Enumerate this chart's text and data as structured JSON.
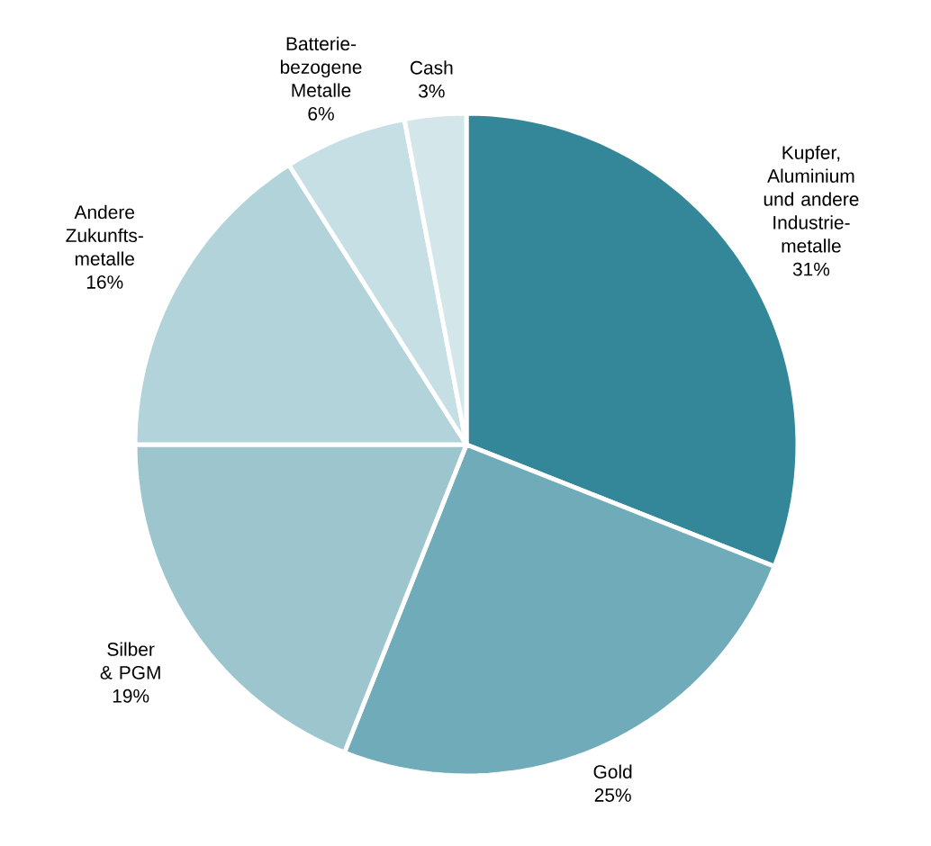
{
  "chart_data": {
    "type": "pie",
    "categories": [
      "Kupfer, Aluminium und andere Industrie-metalle",
      "Gold",
      "Silber & PGM",
      "Andere Zukunfts-metalle",
      "Batterie-bezogene Metalle",
      "Cash"
    ],
    "values": [
      31,
      25,
      19,
      16,
      6,
      3
    ],
    "value_labels": [
      "31%",
      "25%",
      "19%",
      "16%",
      "6%",
      "3%"
    ],
    "colors": [
      "#338799",
      "#6fabb9",
      "#9cc5cd",
      "#b2d3d9",
      "#c6dfe4",
      "#d3e6ea"
    ]
  }
}
